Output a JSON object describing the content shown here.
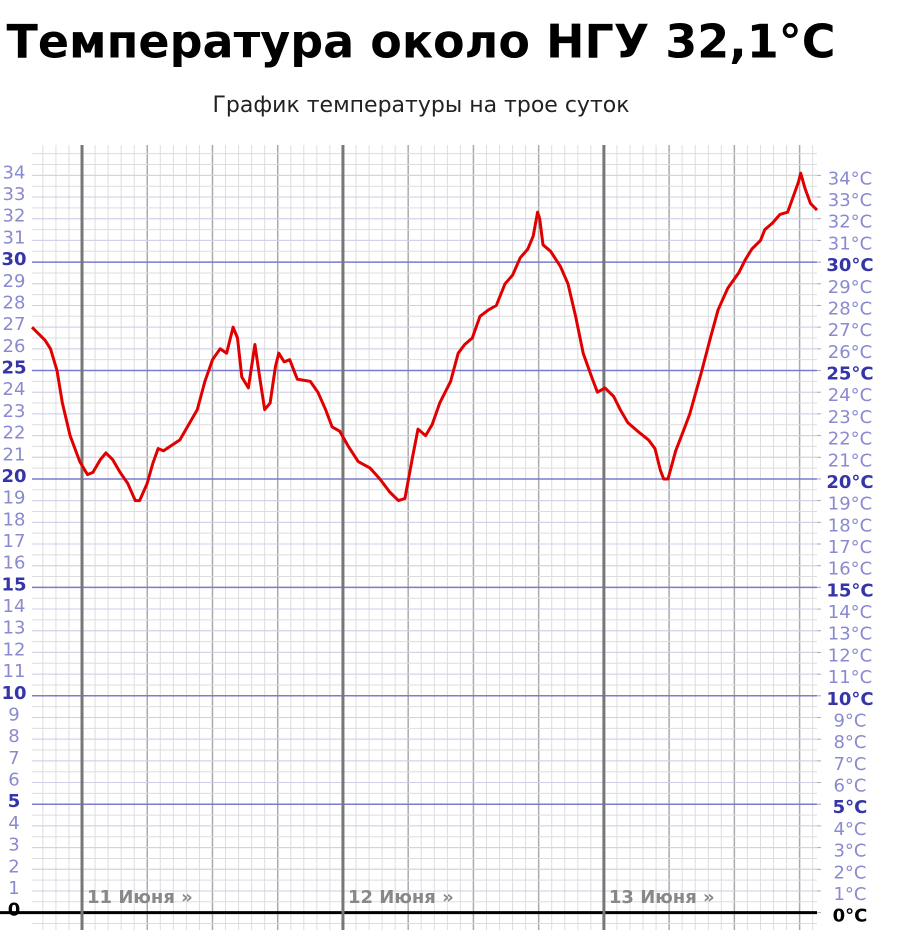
{
  "chart_data": {
    "type": "line",
    "title": "Температура около НГУ 32,1°C",
    "subtitle": "График температуры на трое суток",
    "color": "#e00000",
    "x": [
      -4.6,
      -3.4,
      -2.9,
      -2.3,
      -1.8,
      -1.1,
      -0.2,
      0.5,
      1.0,
      1.7,
      2.2,
      2.8,
      3.5,
      4.2,
      4.9,
      5.3,
      6.0,
      6.5,
      7.0,
      7.5,
      8.1,
      9.0,
      9.8,
      10.6,
      11.3,
      12.0,
      12.7,
      13.3,
      13.9,
      14.3,
      14.7,
      15.3,
      15.9,
      16.4,
      16.8,
      17.3,
      17.8,
      18.1,
      18.6,
      19.1,
      19.8,
      21.0,
      21.7,
      22.4,
      23.0,
      23.7,
      24.5,
      25.4,
      26.5,
      27.4,
      28.3,
      29.1,
      29.7,
      30.4,
      30.9,
      31.6,
      32.2,
      32.9,
      33.9,
      34.6,
      35.2,
      35.9,
      36.6,
      37.4,
      38.1,
      38.9,
      39.6,
      40.3,
      41.0,
      41.5,
      41.9,
      42.1,
      42.4,
      43.1,
      44.0,
      44.7,
      45.4,
      46.1,
      46.8,
      47.4,
      48.1,
      48.9,
      49.5,
      50.2,
      51.1,
      52.1,
      52.7,
      53.2,
      53.5,
      53.9,
      54.6,
      55.3,
      55.9,
      56.9,
      57.8,
      58.5,
      59.4,
      60.4,
      61.0,
      61.6,
      62.4,
      62.8,
      63.5,
      64.2,
      64.9,
      65.4,
      65.9,
      66.1,
      66.5,
      67.0,
      67.6
    ],
    "values": [
      27,
      26.4,
      26,
      25,
      23.5,
      22,
      20.8,
      20.2,
      20.3,
      20.9,
      21.2,
      20.9,
      20.3,
      19.8,
      19,
      19,
      19.8,
      20.7,
      21.4,
      21.3,
      21.5,
      21.8,
      22.5,
      23.2,
      24.5,
      25.5,
      26,
      25.8,
      27,
      26.5,
      24.7,
      24.2,
      26.2,
      24.5,
      23.2,
      23.5,
      25.2,
      25.8,
      25.4,
      25.5,
      24.6,
      24.5,
      24,
      23.2,
      22.4,
      22.2,
      21.5,
      20.8,
      20.5,
      20,
      19.4,
      19,
      19.1,
      21,
      22.3,
      22,
      22.5,
      23.5,
      24.5,
      25.8,
      26.2,
      26.5,
      27.5,
      27.8,
      28,
      29,
      29.4,
      30.2,
      30.6,
      31.2,
      32.3,
      32,
      30.8,
      30.5,
      29.8,
      29,
      27.5,
      25.8,
      24.8,
      24,
      24.2,
      23.8,
      23.2,
      22.6,
      22.2,
      21.8,
      21.4,
      20.4,
      20,
      20,
      21.3,
      22.2,
      23,
      24.8,
      26.5,
      27.8,
      28.8,
      29.5,
      30.1,
      30.6,
      31,
      31.5,
      31.8,
      32.2,
      32.3,
      33,
      33.7,
      34.1,
      33.4,
      32.7,
      32.4
    ],
    "xlim": [
      -4.6,
      67.6
    ],
    "xticks": [
      {
        "value": 0,
        "label": "11 Июня »"
      },
      {
        "value": 24,
        "label": "12 Июня »"
      },
      {
        "value": 48,
        "label": "13 Июня »"
      }
    ],
    "ylim": [
      -0.8,
      35.4
    ],
    "yticks": [
      0,
      1,
      2,
      3,
      4,
      5,
      6,
      7,
      8,
      9,
      10,
      11,
      12,
      13,
      14,
      15,
      16,
      17,
      18,
      19,
      20,
      21,
      22,
      23,
      24,
      25,
      26,
      27,
      28,
      29,
      30,
      31,
      32,
      33,
      34
    ],
    "y2lim": [
      -0.8,
      35.4
    ],
    "y2ticks": [
      {
        "value": 0,
        "label": "0°C"
      },
      {
        "value": 1,
        "label": "1°C"
      },
      {
        "value": 2,
        "label": "2°C"
      },
      {
        "value": 3,
        "label": "3°C"
      },
      {
        "value": 4,
        "label": "4°C"
      },
      {
        "value": 5,
        "label": "5°C"
      },
      {
        "value": 6,
        "label": "6°C"
      },
      {
        "value": 7,
        "label": "7°C"
      },
      {
        "value": 8,
        "label": "8°C"
      },
      {
        "value": 9,
        "label": "9°C"
      },
      {
        "value": 10,
        "label": "10°C"
      },
      {
        "value": 11,
        "label": "11°C"
      },
      {
        "value": 12,
        "label": "12°C"
      },
      {
        "value": 13,
        "label": "13°C"
      },
      {
        "value": 14,
        "label": "14°C"
      },
      {
        "value": 15,
        "label": "15°C"
      },
      {
        "value": 16,
        "label": "16°C"
      },
      {
        "value": 17,
        "label": "17°C"
      },
      {
        "value": 18,
        "label": "18°C"
      },
      {
        "value": 19,
        "label": "19°C"
      },
      {
        "value": 20,
        "label": "20°C"
      },
      {
        "value": 21,
        "label": "21°C"
      },
      {
        "value": 22,
        "label": "22°C"
      },
      {
        "value": 23,
        "label": "23°C"
      },
      {
        "value": 24,
        "label": "24°C"
      },
      {
        "value": 25,
        "label": "25°C"
      },
      {
        "value": 26,
        "label": "26°C"
      },
      {
        "value": 27,
        "label": "27°C"
      },
      {
        "value": 28,
        "label": "28°C"
      },
      {
        "value": 29,
        "label": "29°C"
      },
      {
        "value": 30,
        "label": "30°C"
      },
      {
        "value": 31,
        "label": "31°C"
      },
      {
        "value": 32,
        "label": "32°C"
      },
      {
        "value": 33,
        "label": "33°C"
      },
      {
        "value": 34,
        "label": "34°C"
      }
    ],
    "grid": true
  }
}
